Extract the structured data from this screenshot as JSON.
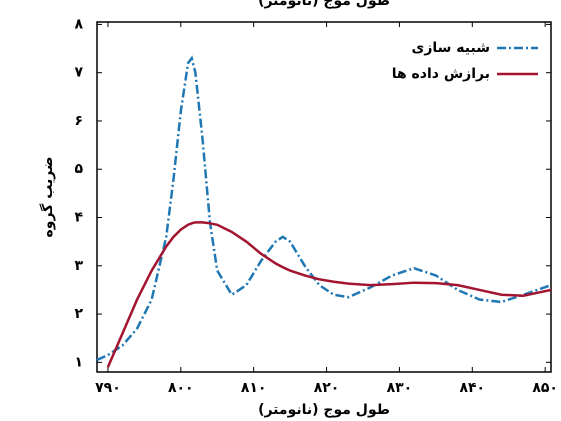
{
  "chart_data": {
    "type": "line",
    "title": "طول موج (نانومتر)",
    "x_label": "طول موج (نانومتر)",
    "y_label": "ضریب گروه",
    "x": [
      788.5,
      790,
      792,
      794,
      796,
      798,
      799,
      800,
      801,
      801.5,
      802,
      803,
      804,
      805,
      807,
      809,
      811,
      813,
      814,
      815,
      817,
      819,
      821,
      823,
      826,
      829,
      832,
      835,
      838,
      841,
      844,
      847,
      850.8
    ],
    "series": [
      {
        "name": "شبیه سازی",
        "color": "#1f77b4",
        "style": "dashdot",
        "values": [
          1.05,
          1.15,
          1.35,
          1.7,
          2.3,
          3.6,
          4.8,
          6.2,
          7.2,
          7.3,
          7.0,
          5.6,
          3.9,
          2.9,
          2.4,
          2.6,
          3.1,
          3.5,
          3.6,
          3.5,
          3.0,
          2.6,
          2.4,
          2.35,
          2.55,
          2.8,
          2.95,
          2.8,
          2.5,
          2.3,
          2.25,
          2.4,
          2.6
        ]
      },
      {
        "name": "برازش داده ها",
        "color": "#a2142f",
        "style": "solid",
        "values": [
          null,
          0.9,
          1.6,
          2.3,
          2.9,
          3.4,
          3.6,
          3.75,
          3.85,
          3.88,
          3.9,
          3.9,
          3.88,
          3.85,
          3.7,
          3.5,
          3.25,
          3.05,
          2.97,
          2.9,
          2.8,
          2.72,
          2.67,
          2.63,
          2.6,
          2.62,
          2.65,
          2.64,
          2.6,
          2.5,
          2.4,
          2.38,
          2.5
        ]
      }
    ],
    "xlim": [
      788.5,
      850.8
    ],
    "ylim": [
      0.8,
      8.05
    ],
    "xticks": [
      {
        "value": 790,
        "label": "۷۹۰"
      },
      {
        "value": 800,
        "label": "۸۰۰"
      },
      {
        "value": 810,
        "label": "۸۱۰"
      },
      {
        "value": 820,
        "label": "۸۲۰"
      },
      {
        "value": 830,
        "label": "۸۳۰"
      },
      {
        "value": 840,
        "label": "۸۴۰"
      },
      {
        "value": 850,
        "label": "۸۵۰"
      }
    ],
    "yticks": [
      {
        "value": 1,
        "label": "۱"
      },
      {
        "value": 2,
        "label": "۲"
      },
      {
        "value": 3,
        "label": "۳"
      },
      {
        "value": 4,
        "label": "۴"
      },
      {
        "value": 5,
        "label": "۵"
      },
      {
        "value": 6,
        "label": "۶"
      },
      {
        "value": 7,
        "label": "۷"
      },
      {
        "value": 8,
        "label": "۸"
      }
    ],
    "legend": "top-right"
  }
}
